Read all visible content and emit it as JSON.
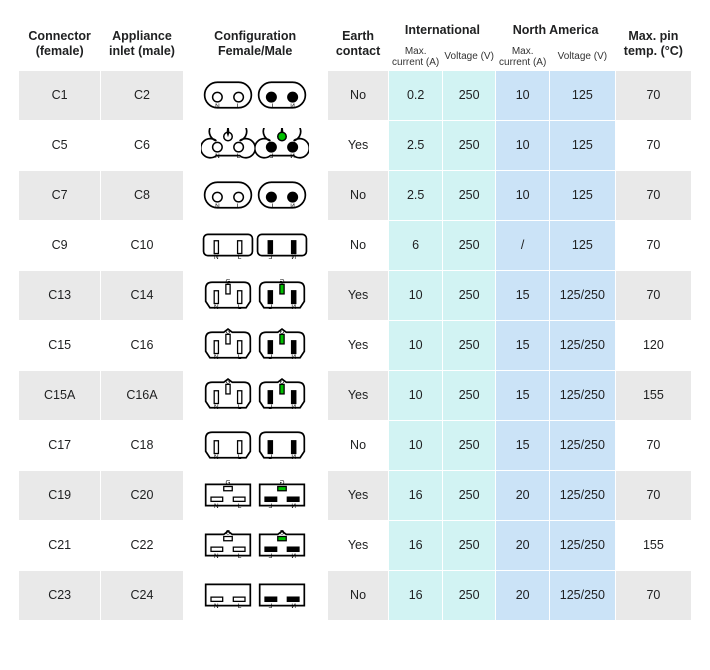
{
  "columns": {
    "connector": "Connector (female)",
    "inlet": "Appliance inlet (male)",
    "config": "Configuration Female/Male",
    "earth": "Earth contact",
    "intl": "International",
    "na": "North America",
    "maxpin": "Max. pin temp. (°C)",
    "maxcurrent": "Max. current (A)",
    "voltage": "Voltage (V)"
  },
  "intl_bg": "#d2f3f3",
  "na_bg": "#cbe3f7",
  "odd_bg": "#e9e9e9",
  "even_bg": "#ffffff",
  "green": "#00c000",
  "rows": [
    {
      "f": "C1",
      "m": "C2",
      "earth": "No",
      "ia": "0.2",
      "iv": "250",
      "na": "10",
      "nv": "125",
      "pt": "70",
      "shape": "fig8",
      "ground": false,
      "slot": "round",
      "notch": false
    },
    {
      "f": "C5",
      "m": "C6",
      "earth": "Yes",
      "ia": "2.5",
      "iv": "250",
      "na": "10",
      "nv": "125",
      "pt": "70",
      "shape": "clover",
      "ground": true,
      "slot": "round",
      "notch": false
    },
    {
      "f": "C7",
      "m": "C8",
      "earth": "No",
      "ia": "2.5",
      "iv": "250",
      "na": "10",
      "nv": "125",
      "pt": "70",
      "shape": "fig8",
      "ground": false,
      "slot": "round",
      "notch": false
    },
    {
      "f": "C9",
      "m": "C10",
      "earth": "No",
      "ia": "6",
      "iv": "250",
      "na": "/",
      "nv": "125",
      "pt": "70",
      "shape": "rect",
      "ground": false,
      "slot": "blade",
      "notch": false
    },
    {
      "f": "C13",
      "m": "C14",
      "earth": "Yes",
      "ia": "10",
      "iv": "250",
      "na": "15",
      "nv": "125/250",
      "pt": "70",
      "shape": "kettle",
      "ground": true,
      "slot": "blade",
      "notch": false
    },
    {
      "f": "C15",
      "m": "C16",
      "earth": "Yes",
      "ia": "10",
      "iv": "250",
      "na": "15",
      "nv": "125/250",
      "pt": "120",
      "shape": "kettle",
      "ground": true,
      "slot": "blade",
      "notch": true
    },
    {
      "f": "C15A",
      "m": "C16A",
      "earth": "Yes",
      "ia": "10",
      "iv": "250",
      "na": "15",
      "nv": "125/250",
      "pt": "155",
      "shape": "kettle",
      "ground": true,
      "slot": "blade",
      "notch": true
    },
    {
      "f": "C17",
      "m": "C18",
      "earth": "No",
      "ia": "10",
      "iv": "250",
      "na": "15",
      "nv": "125/250",
      "pt": "70",
      "shape": "kettle",
      "ground": false,
      "slot": "blade",
      "notch": false
    },
    {
      "f": "C19",
      "m": "C20",
      "earth": "Yes",
      "ia": "16",
      "iv": "250",
      "na": "20",
      "nv": "125/250",
      "pt": "70",
      "shape": "square",
      "ground": true,
      "slot": "hblade",
      "notch": false
    },
    {
      "f": "C21",
      "m": "C22",
      "earth": "Yes",
      "ia": "16",
      "iv": "250",
      "na": "20",
      "nv": "125/250",
      "pt": "155",
      "shape": "square",
      "ground": true,
      "slot": "hblade",
      "notch": true
    },
    {
      "f": "C23",
      "m": "C24",
      "earth": "No",
      "ia": "16",
      "iv": "250",
      "na": "20",
      "nv": "125/250",
      "pt": "70",
      "shape": "square",
      "ground": false,
      "slot": "hblade",
      "notch": false
    }
  ]
}
